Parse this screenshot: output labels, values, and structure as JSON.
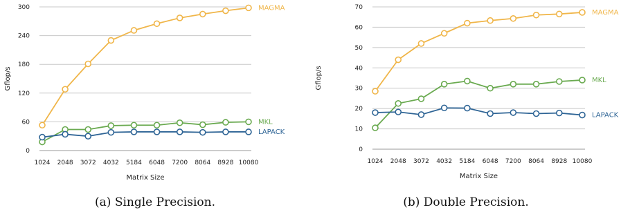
{
  "chart_data": [
    {
      "type": "line",
      "caption": "(a) Single Precision.",
      "xlabel": "Matrix Size",
      "ylabel": "Gflop/s",
      "categories": [
        "1024",
        "2048",
        "3072",
        "4032",
        "5184",
        "6048",
        "7200",
        "8064",
        "8928",
        "10080"
      ],
      "yticks": [
        "0",
        "60",
        "120",
        "180",
        "240",
        "300"
      ],
      "ylim": [
        0,
        300
      ],
      "grid": true,
      "legend": "inline-right",
      "series": [
        {
          "name": "MAGMA",
          "color": "#f0b64a",
          "values": [
            53,
            128,
            181,
            230,
            251,
            265,
            277,
            285,
            292,
            298
          ]
        },
        {
          "name": "MKL",
          "color": "#6aaa50",
          "values": [
            18,
            44,
            44,
            52,
            53,
            53,
            58,
            54,
            59,
            60
          ]
        },
        {
          "name": "LAPACK",
          "color": "#2f6596",
          "values": [
            28,
            34,
            30,
            38,
            39,
            39,
            39,
            38,
            39,
            39
          ]
        }
      ]
    },
    {
      "type": "line",
      "caption": "(b) Double Precision.",
      "xlabel": "Matrix Size",
      "ylabel": "Gflop/s",
      "categories": [
        "1024",
        "2048",
        "3072",
        "4032",
        "5184",
        "6048",
        "7200",
        "8064",
        "8928",
        "10080"
      ],
      "yticks": [
        "0",
        "10",
        "20",
        "30",
        "40",
        "50",
        "60",
        "70"
      ],
      "ylim": [
        0,
        70
      ],
      "grid": true,
      "legend": "inline-right",
      "series": [
        {
          "name": "MAGMA",
          "color": "#f0b64a",
          "values": [
            28.5,
            44,
            52,
            57,
            62,
            63.3,
            64.3,
            66,
            66.5,
            67.3
          ]
        },
        {
          "name": "MKL",
          "color": "#6aaa50",
          "values": [
            10.5,
            22.5,
            24.8,
            32,
            33.5,
            30,
            32,
            32,
            33.3,
            34
          ]
        },
        {
          "name": "LAPACK",
          "color": "#2f6596",
          "values": [
            18,
            18.3,
            17,
            20.3,
            20.2,
            17.5,
            18,
            17.5,
            17.8,
            16.8
          ]
        }
      ]
    }
  ]
}
